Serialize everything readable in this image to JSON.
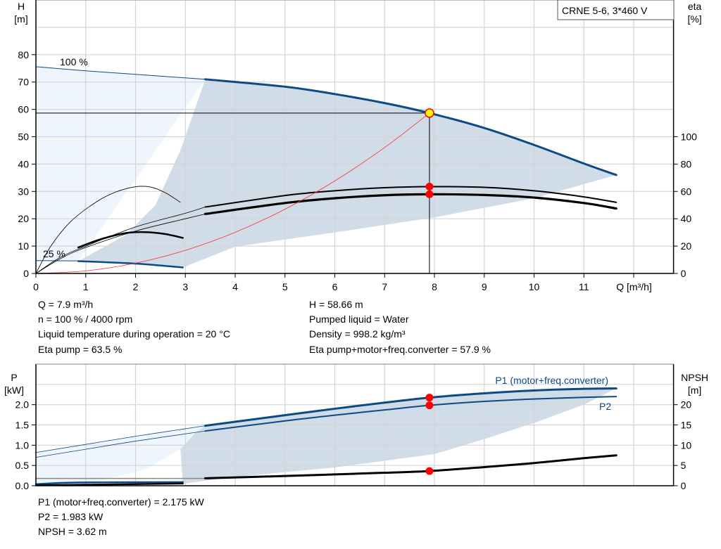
{
  "chart_data": [
    {
      "type": "line",
      "title": "CRNE 5-6, 3*460 V",
      "xlabel": "Q [m³/h]",
      "ylabel_left": [
        "H",
        "[m]"
      ],
      "ylabel_right": [
        "eta",
        "[%]"
      ],
      "xlim": [
        0,
        12.8
      ],
      "ylim_left": [
        0,
        100
      ],
      "ylim_right": [
        0,
        200
      ],
      "x_ticks": [
        "0",
        "1",
        "2",
        "3",
        "4",
        "5",
        "6",
        "7",
        "8",
        "9",
        "10",
        "11"
      ],
      "y_ticks_left": [
        "0",
        "10",
        "20",
        "30",
        "40",
        "50",
        "60",
        "70",
        "80"
      ],
      "y_ticks_right": [
        "0",
        "20",
        "40",
        "60",
        "80",
        "100"
      ],
      "grid": true,
      "speed_labels": {
        "full": "100 %",
        "min": "25 %"
      },
      "colors": {
        "head": "#0d4a85",
        "eta": "#000000",
        "system": "#ff3030",
        "region_light": "#eef5fd",
        "region_dark": "#d0dce7",
        "duty_point": "#ffff00",
        "marker": "#ff0000"
      },
      "series": [
        {
          "id": "head_100_thin",
          "axis": "left",
          "color": "#0d4a85",
          "width": 1,
          "points": [
            [
              0,
              75.6
            ],
            [
              1,
              74.1
            ],
            [
              2,
              72.8
            ],
            [
              3.4,
              71
            ]
          ]
        },
        {
          "id": "head_100",
          "axis": "left",
          "color": "#0d4a85",
          "width": 3,
          "points": [
            [
              3.4,
              71
            ],
            [
              5,
              68.3
            ],
            [
              6,
              65.6
            ],
            [
              7,
              62.3
            ],
            [
              7.9,
              58.66
            ],
            [
              9,
              53.2
            ],
            [
              10,
              47
            ],
            [
              11,
              40.2
            ],
            [
              11.65,
              36
            ]
          ]
        },
        {
          "id": "head_25_thin",
          "axis": "left",
          "color": "#0d4a85",
          "width": 1,
          "points": [
            [
              0,
              4.7
            ],
            [
              0.85,
              4.6
            ]
          ]
        },
        {
          "id": "head_25",
          "axis": "left",
          "color": "#0d4a85",
          "width": 2.5,
          "points": [
            [
              0.85,
              4.5
            ],
            [
              2,
              3.6
            ],
            [
              2.95,
              2.2
            ]
          ]
        },
        {
          "id": "eta_pump_thin",
          "axis": "right",
          "color": "#000",
          "width": 0.8,
          "points": [
            [
              0,
              0
            ],
            [
              0.5,
              12
            ],
            [
              1,
              20
            ],
            [
              2,
              34
            ],
            [
              3,
              44
            ],
            [
              3.4,
              48.6
            ]
          ]
        },
        {
          "id": "eta_pump",
          "axis": "right",
          "color": "#000",
          "width": 2,
          "points": [
            [
              3.4,
              48.6
            ],
            [
              5,
              57
            ],
            [
              6,
              60.5
            ],
            [
              7,
              62.7
            ],
            [
              7.9,
              63.5
            ],
            [
              9,
              63
            ],
            [
              10,
              60.5
            ],
            [
              11,
              56
            ],
            [
              11.65,
              52
            ]
          ]
        },
        {
          "id": "eta_total_thin",
          "axis": "right",
          "color": "#000",
          "width": 0.8,
          "points": [
            [
              0,
              0
            ],
            [
              0.5,
              11
            ],
            [
              1,
              19
            ],
            [
              2,
              31
            ],
            [
              3,
              40
            ],
            [
              3.4,
              43.5
            ]
          ]
        },
        {
          "id": "eta_total",
          "axis": "right",
          "color": "#000",
          "width": 3.2,
          "points": [
            [
              3.4,
              43.5
            ],
            [
              5,
              51.5
            ],
            [
              6,
              55
            ],
            [
              7,
              57.2
            ],
            [
              7.9,
              57.9
            ],
            [
              9,
              57.4
            ],
            [
              10,
              55.5
            ],
            [
              11,
              51.5
            ],
            [
              11.65,
              47.5
            ]
          ]
        },
        {
          "id": "eta_pump_25",
          "axis": "right",
          "color": "#000",
          "width": 0.8,
          "points": [
            [
              0,
              0
            ],
            [
              0.3,
              20
            ],
            [
              0.7,
              38
            ],
            [
              1.2,
              52
            ],
            [
              1.6,
              59.5
            ],
            [
              2,
              63.4
            ],
            [
              2.3,
              63.2
            ],
            [
              2.6,
              59
            ],
            [
              2.9,
              52
            ]
          ]
        },
        {
          "id": "eta_total_25",
          "axis": "right",
          "color": "#000",
          "width": 2.5,
          "points": [
            [
              0.85,
              19
            ],
            [
              1.3,
              25
            ],
            [
              1.8,
              29.5
            ],
            [
              2.2,
              30.2
            ],
            [
              2.6,
              28.8
            ],
            [
              2.95,
              26
            ]
          ]
        },
        {
          "id": "system_curve",
          "axis": "left",
          "color": "#ff3030",
          "width": 0.8,
          "points": [
            [
              0,
              0
            ],
            [
              1,
              0.94
            ],
            [
              2,
              3.76
            ],
            [
              3,
              8.46
            ],
            [
              4,
              15.04
            ],
            [
              5,
              23.5
            ],
            [
              6,
              33.84
            ],
            [
              7,
              46.06
            ],
            [
              7.9,
              58.66
            ]
          ]
        }
      ],
      "regions": [
        {
          "id": "light",
          "color": "#eef5fd",
          "points": [
            [
              0,
              75.6
            ],
            [
              1,
              74.1
            ],
            [
              2,
              72.8
            ],
            [
              3.4,
              71
            ],
            [
              0.85,
              4.5
            ],
            [
              0,
              4.7
            ]
          ]
        },
        {
          "id": "dark",
          "color": "#d0dce7",
          "points": [
            [
              0.85,
              4.5
            ],
            [
              1.8,
              14
            ],
            [
              2.4,
              25
            ],
            [
              2.9,
              45
            ],
            [
              3.4,
              71
            ],
            [
              5,
              68.3
            ],
            [
              6,
              65.6
            ],
            [
              7,
              62.3
            ],
            [
              7.9,
              58.66
            ],
            [
              9,
              53.2
            ],
            [
              10,
              47
            ],
            [
              11,
              40.2
            ],
            [
              11.65,
              36
            ],
            [
              10,
              27.5
            ],
            [
              8,
              20.5
            ],
            [
              6,
              15
            ],
            [
              4,
              9.8
            ],
            [
              2.95,
              2.2
            ],
            [
              2,
              3.6
            ]
          ]
        }
      ],
      "duty_point": {
        "q": 7.9,
        "h": 58.66
      },
      "markers": [
        {
          "q": 7.9,
          "eta": 63.5
        },
        {
          "q": 7.9,
          "eta": 57.9
        }
      ]
    },
    {
      "type": "line",
      "xlim": [
        0,
        12.8
      ],
      "ylabel_left": [
        "P",
        "[kW]"
      ],
      "ylabel_right": [
        "NPSH",
        "[m]"
      ],
      "ylim_left": [
        0,
        3.0
      ],
      "ylim_right": [
        0,
        30
      ],
      "y_ticks_left": [
        "0.0",
        "0.5",
        "1.0",
        "1.5",
        "2.0"
      ],
      "y_ticks_right": [
        "0",
        "5",
        "10",
        "15",
        "20"
      ],
      "grid": true,
      "series": [
        {
          "id": "p1_thin",
          "name": "P1 (motor+freq.converter)",
          "axis": "left",
          "color": "#0d4a85",
          "width": 0.8,
          "points": [
            [
              0,
              0.82
            ],
            [
              1,
              1.02
            ],
            [
              2,
              1.22
            ],
            [
              3.4,
              1.48
            ]
          ]
        },
        {
          "id": "p1",
          "name": "P1 (motor+freq.converter)",
          "axis": "left",
          "color": "#0d4a85",
          "width": 3,
          "points": [
            [
              3.4,
              1.48
            ],
            [
              5,
              1.74
            ],
            [
              6,
              1.9
            ],
            [
              7,
              2.05
            ],
            [
              7.9,
              2.175
            ],
            [
              9,
              2.28
            ],
            [
              10,
              2.35
            ],
            [
              11,
              2.39
            ],
            [
              11.65,
              2.4
            ]
          ]
        },
        {
          "id": "p2_thin",
          "name": "P2",
          "axis": "left",
          "color": "#0d4a85",
          "width": 0.8,
          "points": [
            [
              0,
              0.7
            ],
            [
              1,
              0.9
            ],
            [
              2,
              1.1
            ],
            [
              3.4,
              1.35
            ]
          ]
        },
        {
          "id": "p2",
          "name": "P2",
          "axis": "left",
          "color": "#0d4a85",
          "width": 2,
          "points": [
            [
              3.4,
              1.35
            ],
            [
              5,
              1.6
            ],
            [
              6,
              1.74
            ],
            [
              7,
              1.87
            ],
            [
              7.9,
              1.983
            ],
            [
              9,
              2.08
            ],
            [
              10,
              2.14
            ],
            [
              11,
              2.18
            ],
            [
              11.65,
              2.2
            ]
          ]
        },
        {
          "id": "npsh_thin",
          "axis": "right",
          "color": "#888",
          "width": 1.5,
          "points": [
            [
              0,
              1.8
            ],
            [
              3.4,
              1.8
            ]
          ]
        },
        {
          "id": "npsh",
          "axis": "right",
          "color": "#000",
          "width": 3,
          "points": [
            [
              3.4,
              1.85
            ],
            [
              5,
              2.4
            ],
            [
              6,
              2.8
            ],
            [
              7,
              3.2
            ],
            [
              7.9,
              3.62
            ],
            [
              9,
              4.6
            ],
            [
              10,
              5.6
            ],
            [
              11,
              6.8
            ],
            [
              11.65,
              7.5
            ]
          ]
        },
        {
          "id": "p1_25",
          "axis": "left",
          "color": "#0d4a85",
          "width": 2.5,
          "points": [
            [
              0,
              0.04
            ],
            [
              0.85,
              0.08
            ],
            [
              2.95,
              0.09
            ]
          ]
        },
        {
          "id": "npsh_25",
          "axis": "right",
          "color": "#000",
          "width": 2.5,
          "points": [
            [
              0,
              0.1
            ],
            [
              1,
              0.25
            ],
            [
              2.95,
              0.55
            ]
          ]
        }
      ],
      "regions": [
        {
          "id": "light",
          "color": "#eef5fd",
          "points": [
            [
              0,
              0.82
            ],
            [
              1,
              1.02
            ],
            [
              2,
              1.22
            ],
            [
              3.4,
              1.48
            ],
            [
              2.9,
              0.9
            ],
            [
              2.2,
              0.4
            ],
            [
              1.2,
              0.1
            ],
            [
              0,
              0
            ]
          ]
        },
        {
          "id": "dark",
          "color": "#d0dce7",
          "points": [
            [
              3.4,
              1.48
            ],
            [
              5,
              1.74
            ],
            [
              6,
              1.9
            ],
            [
              7,
              2.05
            ],
            [
              7.9,
              2.175
            ],
            [
              9,
              2.28
            ],
            [
              10,
              2.35
            ],
            [
              11,
              2.39
            ],
            [
              11.65,
              2.4
            ],
            [
              11,
              2.0
            ],
            [
              10,
              1.55
            ],
            [
              9,
              1.15
            ],
            [
              8,
              0.78
            ],
            [
              6,
              0.45
            ],
            [
              4,
              0.22
            ],
            [
              2.95,
              0.05
            ],
            [
              2.9,
              0.9
            ],
            [
              3.2,
              1.3
            ]
          ]
        }
      ],
      "markers": [
        {
          "q": 7.9,
          "p": 2.175
        },
        {
          "q": 7.9,
          "p": 1.983
        },
        {
          "q": 7.9,
          "npsh": 3.62
        }
      ]
    }
  ],
  "info_top": {
    "left": [
      "Q = 7.9 m³/h",
      "n = 100 % / 4000 rpm",
      "Liquid temperature during operation = 20 °C",
      "Eta pump = 63.5 %"
    ],
    "right": [
      "H = 58.66 m",
      "Pumped liquid = Water",
      "Density = 998.2 kg/m³",
      "Eta pump+motor+freq.converter = 57.9 %"
    ]
  },
  "info_bottom": [
    "P1 (motor+freq.converter) = 2.175 kW",
    "P2 = 1.983 kW",
    "NPSH = 3.62 m"
  ]
}
